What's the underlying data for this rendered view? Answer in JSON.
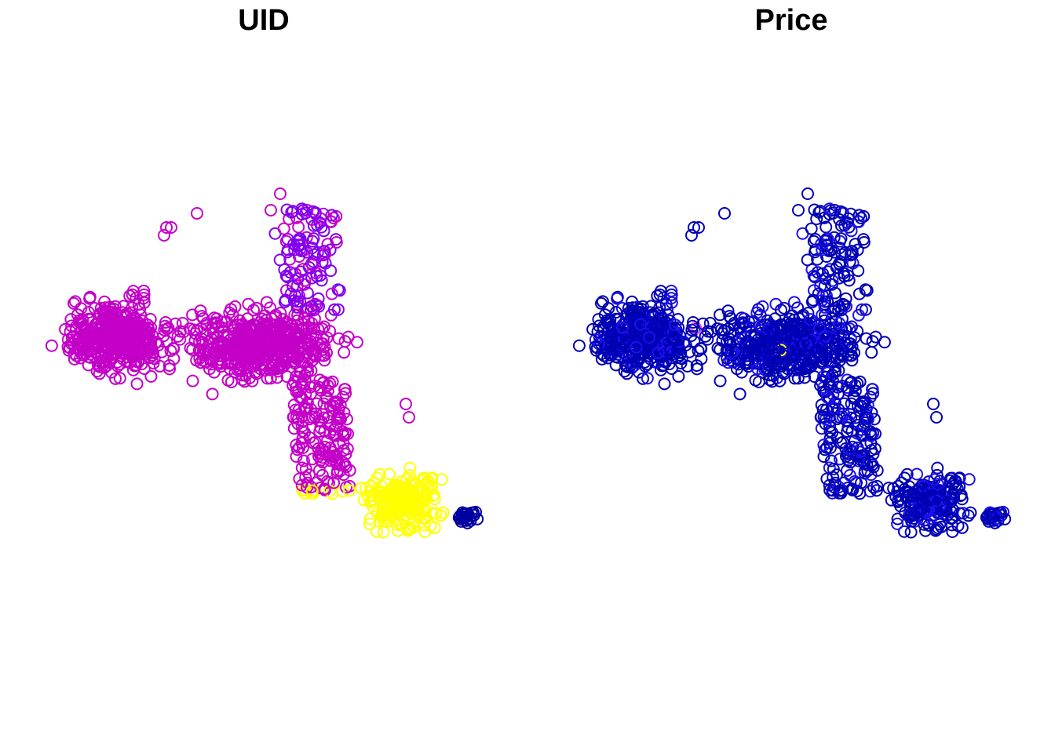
{
  "chart_data": [
    {
      "type": "scatter",
      "title": "UID",
      "xlabel": "",
      "ylabel": "",
      "axes": false,
      "grid": false,
      "legend": "none",
      "marker": "open-circle",
      "colors": {
        "dominant": "#c400c8",
        "upper_arm": "#8000f0",
        "southeast": "#ffff00",
        "tip": "#0000a0"
      },
      "groups": [
        "west",
        "center",
        "upper_arm",
        "outliers",
        "valley",
        "southeast",
        "tip"
      ],
      "seed": 20231
    },
    {
      "type": "scatter",
      "title": "Price",
      "xlabel": "",
      "ylabel": "",
      "axes": false,
      "grid": false,
      "legend": "none",
      "marker": "open-circle",
      "colors": {
        "dominant": "#0000b4",
        "accent": "#1f10f0",
        "rare": "#ff40ff",
        "rare2": "#ffff00"
      },
      "groups": [
        "west",
        "center",
        "upper_arm",
        "outliers",
        "valley",
        "southeast",
        "tip"
      ],
      "seed": 20231
    }
  ]
}
